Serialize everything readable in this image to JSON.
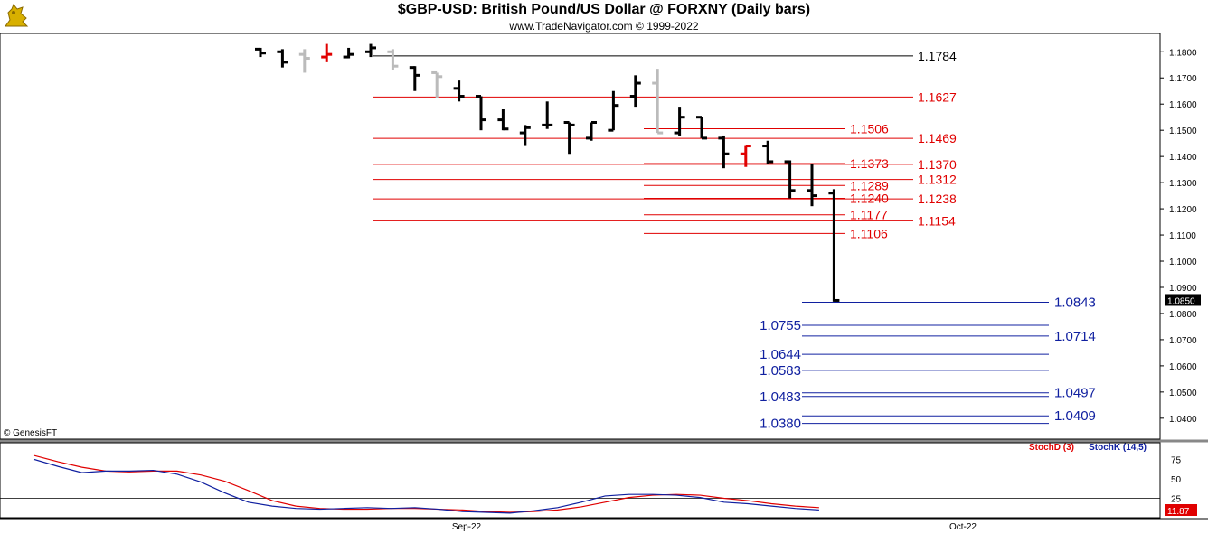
{
  "header": {
    "title": "$GBP-USD:  British Pound/US Dollar @ FORXNY  (Daily bars)",
    "subtitle": "www.TradeNavigator.com © 1999-2022",
    "copyright": "© GenesisFT"
  },
  "colors": {
    "up_bar": "#000000",
    "down_bar": "#000000",
    "gray_bar": "#bbbbbb",
    "red_bar": "#e00000",
    "resistance": "#e00000",
    "support": "#1020a0",
    "black_line": "#000000",
    "stoch_d": "#e00000",
    "stoch_k": "#1010d0",
    "axis_bg": "#ffffff"
  },
  "icons": {
    "logo": "bull-logo-icon"
  },
  "chart_data": [
    {
      "type": "ohlc",
      "title": "$GBP-USD:  British Pound/US Dollar @ FORXNY  (Daily bars)",
      "ylim": [
        1.032,
        1.187
      ],
      "yticks": [
        "1.1800",
        "1.1700",
        "1.1600",
        "1.1500",
        "1.1400",
        "1.1300",
        "1.1200",
        "1.1100",
        "1.1000",
        "1.0900",
        "1.0800",
        "1.0700",
        "1.0600",
        "1.0500",
        "1.0400"
      ],
      "last_price_label": "1.0850",
      "x_labels": [
        "Sep-22",
        "Oct-22"
      ],
      "bars": [
        {
          "o": 1.181,
          "h": 1.1815,
          "l": 1.178,
          "c": 1.1795,
          "color": "black"
        },
        {
          "o": 1.18,
          "h": 1.181,
          "l": 1.174,
          "c": 1.176,
          "color": "black"
        },
        {
          "o": 1.179,
          "h": 1.181,
          "l": 1.172,
          "c": 1.1775,
          "color": "gray"
        },
        {
          "o": 1.178,
          "h": 1.183,
          "l": 1.176,
          "c": 1.179,
          "color": "red"
        },
        {
          "o": 1.178,
          "h": 1.1815,
          "l": 1.1775,
          "c": 1.179,
          "color": "black"
        },
        {
          "o": 1.18,
          "h": 1.183,
          "l": 1.178,
          "c": 1.1815,
          "color": "black"
        },
        {
          "o": 1.18,
          "h": 1.181,
          "l": 1.173,
          "c": 1.1745,
          "color": "gray"
        },
        {
          "o": 1.174,
          "h": 1.1745,
          "l": 1.165,
          "c": 1.171,
          "color": "black"
        },
        {
          "o": 1.172,
          "h": 1.172,
          "l": 1.1625,
          "c": 1.1705,
          "color": "gray"
        },
        {
          "o": 1.166,
          "h": 1.169,
          "l": 1.161,
          "c": 1.163,
          "color": "black"
        },
        {
          "o": 1.163,
          "h": 1.163,
          "l": 1.15,
          "c": 1.154,
          "color": "black"
        },
        {
          "o": 1.154,
          "h": 1.158,
          "l": 1.15,
          "c": 1.1505,
          "color": "black"
        },
        {
          "o": 1.149,
          "h": 1.152,
          "l": 1.144,
          "c": 1.151,
          "color": "black"
        },
        {
          "o": 1.152,
          "h": 1.161,
          "l": 1.1505,
          "c": 1.152,
          "color": "black"
        },
        {
          "o": 1.153,
          "h": 1.153,
          "l": 1.141,
          "c": 1.152,
          "color": "black"
        },
        {
          "o": 1.147,
          "h": 1.153,
          "l": 1.146,
          "c": 1.153,
          "color": "black"
        },
        {
          "o": 1.15,
          "h": 1.165,
          "l": 1.15,
          "c": 1.1595,
          "color": "black"
        },
        {
          "o": 1.163,
          "h": 1.171,
          "l": 1.159,
          "c": 1.168,
          "color": "black"
        },
        {
          "o": 1.168,
          "h": 1.1735,
          "l": 1.149,
          "c": 1.149,
          "color": "gray"
        },
        {
          "o": 1.149,
          "h": 1.159,
          "l": 1.148,
          "c": 1.155,
          "color": "black"
        },
        {
          "o": 1.155,
          "h": 1.155,
          "l": 1.147,
          "c": 1.147,
          "color": "black"
        },
        {
          "o": 1.147,
          "h": 1.148,
          "l": 1.1355,
          "c": 1.141,
          "color": "black"
        },
        {
          "o": 1.141,
          "h": 1.144,
          "l": 1.136,
          "c": 1.144,
          "color": "red"
        },
        {
          "o": 1.144,
          "h": 1.146,
          "l": 1.137,
          "c": 1.138,
          "color": "black"
        },
        {
          "o": 1.138,
          "h": 1.1385,
          "l": 1.124,
          "c": 1.127,
          "color": "black"
        },
        {
          "o": 1.127,
          "h": 1.137,
          "l": 1.121,
          "c": 1.125,
          "color": "black"
        },
        {
          "o": 1.126,
          "h": 1.1275,
          "l": 1.0845,
          "c": 1.085,
          "color": "black"
        }
      ],
      "levels": [
        {
          "value": "1.1784",
          "color": "black",
          "side": "right"
        },
        {
          "value": "1.1627",
          "color": "red",
          "side": "right"
        },
        {
          "value": "1.1506",
          "color": "red",
          "side": "left"
        },
        {
          "value": "1.1469",
          "color": "red",
          "side": "right"
        },
        {
          "value": "1.1373",
          "color": "red",
          "side": "left"
        },
        {
          "value": "1.1370",
          "color": "red",
          "side": "right"
        },
        {
          "value": "1.1312",
          "color": "red",
          "side": "right"
        },
        {
          "value": "1.1289",
          "color": "red",
          "side": "left"
        },
        {
          "value": "1.1240",
          "color": "red",
          "side": "left"
        },
        {
          "value": "1.1238",
          "color": "red",
          "side": "right"
        },
        {
          "value": "1.1177",
          "color": "red",
          "side": "left"
        },
        {
          "value": "1.1154",
          "color": "red",
          "side": "right"
        },
        {
          "value": "1.1106",
          "color": "red",
          "side": "left"
        },
        {
          "value": "1.0843",
          "color": "blue",
          "side": "right"
        },
        {
          "value": "1.0755",
          "color": "blue",
          "side": "left"
        },
        {
          "value": "1.0714",
          "color": "blue",
          "side": "right"
        },
        {
          "value": "1.0644",
          "color": "blue",
          "side": "left"
        },
        {
          "value": "1.0583",
          "color": "blue",
          "side": "left"
        },
        {
          "value": "1.0497",
          "color": "blue",
          "side": "right"
        },
        {
          "value": "1.0483",
          "color": "blue",
          "side": "left"
        },
        {
          "value": "1.0409",
          "color": "blue",
          "side": "right"
        },
        {
          "value": "1.0380",
          "color": "blue",
          "side": "left"
        }
      ]
    },
    {
      "type": "line",
      "ylim": [
        0,
        100
      ],
      "yticks": [
        "75",
        "50",
        "25"
      ],
      "last_value_label": "11.87",
      "series": [
        {
          "name": "StochD (3)",
          "color": "red",
          "values": [
            80,
            72,
            65,
            60,
            59,
            60,
            60,
            55,
            47,
            35,
            22,
            15,
            12,
            11,
            11,
            12,
            12,
            11,
            10,
            8,
            7,
            8,
            10,
            14,
            20,
            26,
            29,
            30,
            29,
            25,
            22,
            18,
            15,
            13
          ]
        },
        {
          "name": "StochK (14,5)",
          "color": "blue",
          "values": [
            75,
            66,
            58,
            60,
            60,
            61,
            56,
            46,
            32,
            20,
            15,
            12,
            11,
            12,
            13,
            12,
            13,
            11,
            8,
            7,
            6,
            9,
            13,
            20,
            28,
            30,
            30,
            29,
            26,
            20,
            18,
            15,
            12,
            10
          ]
        }
      ]
    }
  ]
}
